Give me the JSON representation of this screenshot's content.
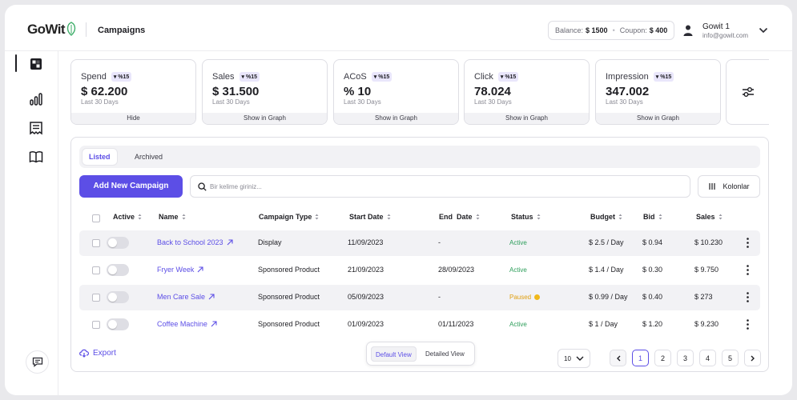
{
  "header": {
    "logo": "GoWit",
    "page_title": "Campaigns",
    "balance_label": "Balance:",
    "balance_value": "$ 1500",
    "coupon_label": "Coupon:",
    "coupon_value": "$ 400",
    "user_name": "Gowit 1",
    "user_email": "info@gowit.com"
  },
  "sidebar": {
    "items": [
      {
        "icon": "dashboard-icon",
        "active": true
      },
      {
        "icon": "bar-chart-icon",
        "active": false
      },
      {
        "icon": "receipt-icon",
        "active": false
      },
      {
        "icon": "book-icon",
        "active": false
      }
    ],
    "bottom_icon": "chat-icon"
  },
  "metrics": [
    {
      "title": "Spend",
      "change": "%15",
      "value": "$ 62.200",
      "period": "Last 30 Days",
      "footer": "Hide"
    },
    {
      "title": "Sales",
      "change": "%15",
      "value": "$ 31.500",
      "period": "Last 30 Days",
      "footer": "Show in Graph"
    },
    {
      "title": "ACoS",
      "change": "%15",
      "value": "% 10",
      "period": "Last 30 Days",
      "footer": "Show in Graph"
    },
    {
      "title": "Click",
      "change": "%15",
      "value": "78.024",
      "period": "Last 30 Days",
      "footer": "Show in Graph"
    },
    {
      "title": "Impression",
      "change": "%15",
      "value": "347.002",
      "period": "Last 30 Days",
      "footer": "Show in Graph"
    }
  ],
  "tabs": [
    "Listed",
    "Archived"
  ],
  "toolbar": {
    "add_label": "Add New Campaign",
    "search_placeholder": "Bir kelime giriniz...",
    "columns_label": "Kolonlar"
  },
  "table": {
    "headers": [
      "Active",
      "Name",
      "Campaign Type",
      "Start Date",
      "End  Date",
      "Status",
      "Budget",
      "Bid",
      "Sales"
    ],
    "rows": [
      {
        "name": "Back to School 2023",
        "type": "Display",
        "start": "11/09/2023",
        "end": "-",
        "status": "Active",
        "budget": "$ 2.5 / Day",
        "bid": "$ 0.94",
        "sales": "$ 10.230"
      },
      {
        "name": "Fryer Week",
        "type": "Sponsored Product",
        "start": "21/09/2023",
        "end": "28/09/2023",
        "status": "Active",
        "budget": "$ 1.4 / Day",
        "bid": "$ 0.30",
        "sales": "$ 9.750"
      },
      {
        "name": "Men Care Sale",
        "type": "Sponsored Product",
        "start": "05/09/2023",
        "end": "-",
        "status": "Paused",
        "budget": "$ 0.99 / Day",
        "bid": "$ 0.40",
        "sales": "$ 273"
      },
      {
        "name": "Coffee Machine",
        "type": "Sponsored Product",
        "start": "01/09/2023",
        "end": "01/11/2023",
        "status": "Active",
        "budget": "$ 1 / Day",
        "bid": "$ 1.20",
        "sales": "$ 9.230"
      }
    ]
  },
  "footer": {
    "export_label": "Export",
    "default_view": "Default View",
    "detailed_view": "Detailed View",
    "page_size": "10",
    "pages": [
      "1",
      "2",
      "3",
      "4",
      "5"
    ],
    "current_page": "1"
  },
  "colors": {
    "accent": "#5c4ee6",
    "active_status": "#2e9e5b",
    "paused_status": "#e0a012"
  }
}
